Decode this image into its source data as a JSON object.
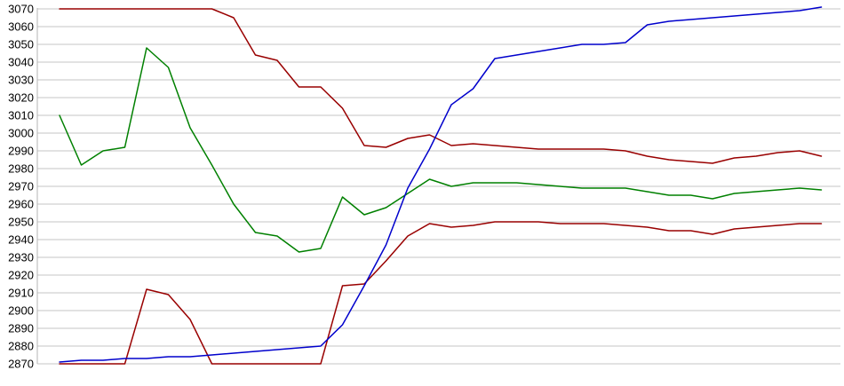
{
  "figure": {
    "background_color": "#ffffff",
    "plot": {
      "grid_color": "#c6c6c6",
      "axis_line_color": "#b5b5b5",
      "tick_label_color": "#000000",
      "y_tick_labels": [
        "3070",
        "3060",
        "3050",
        "3040",
        "3030",
        "3020",
        "3010",
        "3000",
        "2990",
        "2980",
        "2970",
        "2960",
        "2950",
        "2940",
        "2930",
        "2920",
        "2910",
        "2900",
        "2890",
        "2880",
        "2870"
      ],
      "x_tick_labels": []
    }
  },
  "chart_data": {
    "type": "line",
    "title": "",
    "xlabel": "",
    "ylabel": "",
    "grid": true,
    "legend_position": "none",
    "ylim": [
      2870,
      3070
    ],
    "y_tick_step": 10,
    "x": [
      1,
      2,
      3,
      4,
      5,
      6,
      7,
      8,
      9,
      10,
      11,
      12,
      13,
      14,
      15,
      16,
      17,
      18,
      19,
      20,
      21,
      22,
      23,
      24,
      25,
      26,
      27,
      28,
      29,
      30,
      31,
      32,
      33,
      34,
      35,
      36
    ],
    "series": [
      {
        "name": "dark-red-upper",
        "color": "#990000",
        "values": [
          3070,
          3070,
          3070,
          3070,
          3070,
          3070,
          3070,
          3070,
          3065,
          3044,
          3041,
          3026,
          3026,
          3014,
          2993,
          2992,
          2997,
          2999,
          2993,
          2994,
          2993,
          2992,
          2991,
          2991,
          2991,
          2991,
          2990,
          2987,
          2985,
          2984,
          2983,
          2986,
          2987,
          2989,
          2990,
          2987
        ]
      },
      {
        "name": "green",
        "color": "#008000",
        "values": [
          3010,
          2982,
          2990,
          2992,
          3048,
          3037,
          3003,
          2982,
          2960,
          2944,
          2942,
          2933,
          2935,
          2964,
          2954,
          2958,
          2966,
          2974,
          2970,
          2972,
          2972,
          2972,
          2971,
          2970,
          2969,
          2969,
          2969,
          2967,
          2965,
          2965,
          2963,
          2966,
          2967,
          2968,
          2969,
          2968
        ]
      },
      {
        "name": "dark-red-lower",
        "color": "#990000",
        "values": [
          2870,
          2870,
          2870,
          2870,
          2912,
          2909,
          2895,
          2870,
          2870,
          2870,
          2870,
          2870,
          2870,
          2914,
          2915,
          2928,
          2942,
          2949,
          2947,
          2948,
          2950,
          2950,
          2950,
          2949,
          2949,
          2949,
          2948,
          2947,
          2945,
          2945,
          2943,
          2946,
          2947,
          2948,
          2949,
          2949
        ]
      },
      {
        "name": "blue",
        "color": "#0000cc",
        "values": [
          2871,
          2872,
          2872,
          2873,
          2873,
          2874,
          2874,
          2875,
          2876,
          2877,
          2878,
          2879,
          2880,
          2892,
          2914,
          2937,
          2969,
          2991,
          3016,
          3025,
          3042,
          3044,
          3046,
          3048,
          3050,
          3050,
          3051,
          3061,
          3063,
          3064,
          3065,
          3066,
          3067,
          3068,
          3069,
          3071
        ]
      }
    ]
  }
}
